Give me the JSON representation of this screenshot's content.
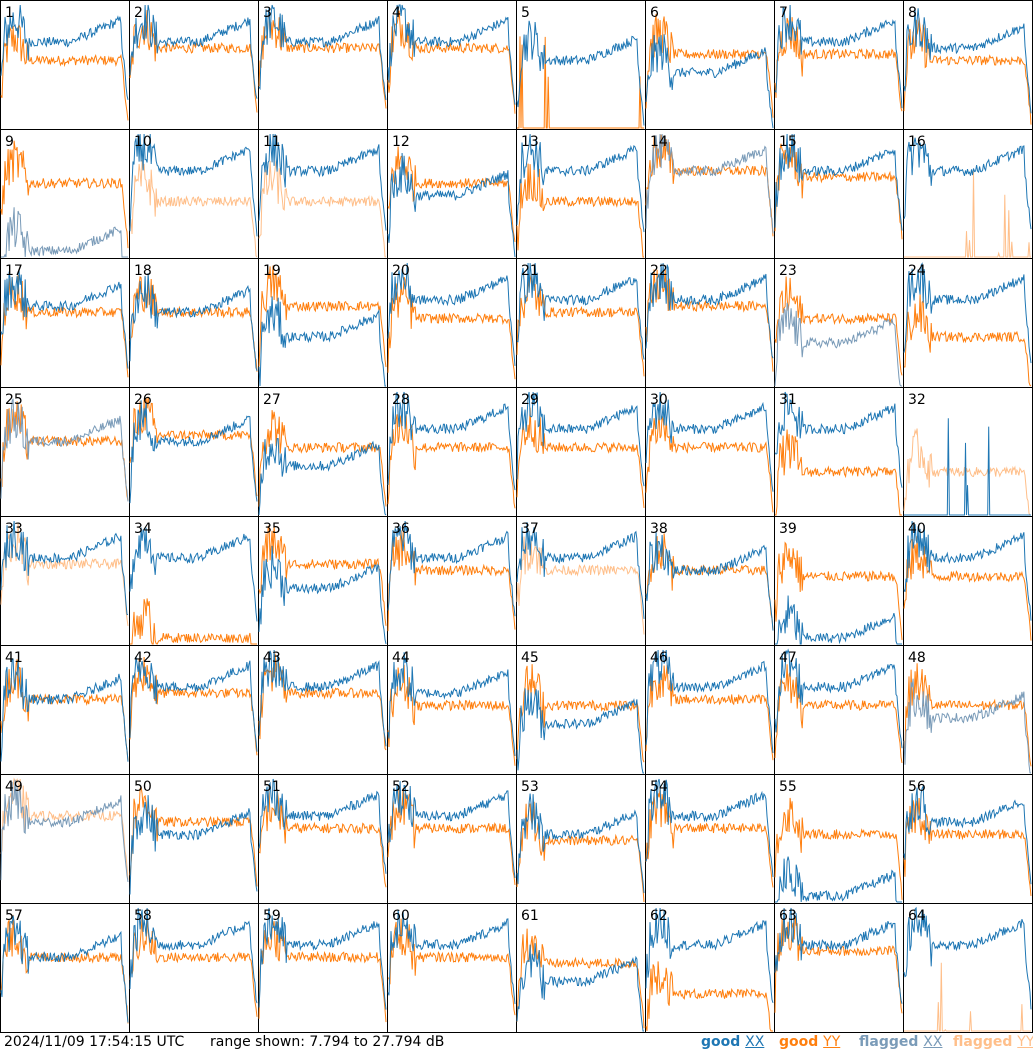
{
  "chart_data": {
    "type": "line",
    "grid": {
      "rows": 8,
      "cols": 8
    },
    "tiles": [
      {
        "label": "1",
        "xx": "good",
        "yy": "good",
        "xx_base": 0.7,
        "yy_base": 0.55
      },
      {
        "label": "2",
        "xx": "good",
        "yy": "good",
        "xx_base": 0.7,
        "yy_base": 0.65
      },
      {
        "label": "3",
        "xx": "good",
        "yy": "good",
        "xx_base": 0.7,
        "yy_base": 0.65
      },
      {
        "label": "4",
        "xx": "good",
        "yy": "good",
        "xx_base": 0.7,
        "yy_base": 0.65
      },
      {
        "label": "5",
        "xx": "good",
        "yy": "good",
        "xx_base": 0.55,
        "yy_base": 0.0
      },
      {
        "label": "6",
        "xx": "good",
        "yy": "good",
        "xx_base": 0.45,
        "yy_base": 0.6
      },
      {
        "label": "7",
        "xx": "good",
        "yy": "good",
        "xx_base": 0.7,
        "yy_base": 0.6
      },
      {
        "label": "8",
        "xx": "good",
        "yy": "good",
        "xx_base": 0.65,
        "yy_base": 0.55
      },
      {
        "label": "9",
        "xx": "flagged",
        "yy": "good",
        "xx_base": 0.05,
        "yy_base": 0.6
      },
      {
        "label": "10",
        "xx": "good",
        "yy": "flagged",
        "xx_base": 0.7,
        "yy_base": 0.45
      },
      {
        "label": "11",
        "xx": "good",
        "yy": "flagged",
        "xx_base": 0.7,
        "yy_base": 0.45
      },
      {
        "label": "12",
        "xx": "good",
        "yy": "good",
        "xx_base": 0.5,
        "yy_base": 0.6
      },
      {
        "label": "13",
        "xx": "good",
        "yy": "good",
        "xx_base": 0.7,
        "yy_base": 0.45
      },
      {
        "label": "14",
        "xx": "flagged",
        "yy": "good",
        "xx_base": 0.7,
        "yy_base": 0.7
      },
      {
        "label": "15",
        "xx": "good",
        "yy": "good",
        "xx_base": 0.7,
        "yy_base": 0.65
      },
      {
        "label": "16",
        "xx": "good",
        "yy": "flagged",
        "xx_base": 0.7,
        "yy_base": 0.0
      },
      {
        "label": "17",
        "xx": "good",
        "yy": "good",
        "xx_base": 0.65,
        "yy_base": 0.6
      },
      {
        "label": "18",
        "xx": "good",
        "yy": "good",
        "xx_base": 0.6,
        "yy_base": 0.6
      },
      {
        "label": "19",
        "xx": "good",
        "yy": "good",
        "xx_base": 0.4,
        "yy_base": 0.65
      },
      {
        "label": "20",
        "xx": "good",
        "yy": "good",
        "xx_base": 0.7,
        "yy_base": 0.55
      },
      {
        "label": "21",
        "xx": "good",
        "yy": "good",
        "xx_base": 0.7,
        "yy_base": 0.6
      },
      {
        "label": "22",
        "xx": "good",
        "yy": "good",
        "xx_base": 0.7,
        "yy_base": 0.65
      },
      {
        "label": "23",
        "xx": "flagged",
        "yy": "good",
        "xx_base": 0.35,
        "yy_base": 0.55
      },
      {
        "label": "24",
        "xx": "good",
        "yy": "good",
        "xx_base": 0.7,
        "yy_base": 0.4
      },
      {
        "label": "25",
        "xx": "flagged",
        "yy": "good",
        "xx_base": 0.6,
        "yy_base": 0.6
      },
      {
        "label": "26",
        "xx": "good",
        "yy": "good",
        "xx_base": 0.6,
        "yy_base": 0.65
      },
      {
        "label": "27",
        "xx": "good",
        "yy": "good",
        "xx_base": 0.4,
        "yy_base": 0.55
      },
      {
        "label": "28",
        "xx": "good",
        "yy": "good",
        "xx_base": 0.7,
        "yy_base": 0.55
      },
      {
        "label": "29",
        "xx": "good",
        "yy": "good",
        "xx_base": 0.7,
        "yy_base": 0.55
      },
      {
        "label": "30",
        "xx": "good",
        "yy": "good",
        "xx_base": 0.7,
        "yy_base": 0.55
      },
      {
        "label": "31",
        "xx": "good",
        "yy": "good",
        "xx_base": 0.7,
        "yy_base": 0.35
      },
      {
        "label": "32",
        "xx": "good",
        "yy": "flagged",
        "xx_base": 0.0,
        "yy_base": 0.35
      },
      {
        "label": "33",
        "xx": "good",
        "yy": "flagged",
        "xx_base": 0.7,
        "yy_base": 0.65
      },
      {
        "label": "34",
        "xx": "good",
        "yy": "good",
        "xx_base": 0.7,
        "yy_base": 0.05
      },
      {
        "label": "35",
        "xx": "good",
        "yy": "good",
        "xx_base": 0.45,
        "yy_base": 0.65
      },
      {
        "label": "36",
        "xx": "good",
        "yy": "good",
        "xx_base": 0.7,
        "yy_base": 0.6
      },
      {
        "label": "37",
        "xx": "good",
        "yy": "flagged",
        "xx_base": 0.7,
        "yy_base": 0.6
      },
      {
        "label": "38",
        "xx": "good",
        "yy": "good",
        "xx_base": 0.6,
        "yy_base": 0.6
      },
      {
        "label": "39",
        "xx": "good",
        "yy": "good",
        "xx_base": 0.05,
        "yy_base": 0.55
      },
      {
        "label": "40",
        "xx": "good",
        "yy": "good",
        "xx_base": 0.7,
        "yy_base": 0.55
      },
      {
        "label": "41",
        "xx": "good",
        "yy": "good",
        "xx_base": 0.6,
        "yy_base": 0.6
      },
      {
        "label": "42",
        "xx": "good",
        "yy": "good",
        "xx_base": 0.7,
        "yy_base": 0.65
      },
      {
        "label": "43",
        "xx": "good",
        "yy": "good",
        "xx_base": 0.7,
        "yy_base": 0.65
      },
      {
        "label": "44",
        "xx": "good",
        "yy": "good",
        "xx_base": 0.65,
        "yy_base": 0.55
      },
      {
        "label": "45",
        "xx": "good",
        "yy": "good",
        "xx_base": 0.4,
        "yy_base": 0.55
      },
      {
        "label": "46",
        "xx": "good",
        "yy": "good",
        "xx_base": 0.7,
        "yy_base": 0.6
      },
      {
        "label": "47",
        "xx": "good",
        "yy": "good",
        "xx_base": 0.7,
        "yy_base": 0.55
      },
      {
        "label": "48",
        "xx": "flagged",
        "yy": "good",
        "xx_base": 0.45,
        "yy_base": 0.55
      },
      {
        "label": "49",
        "xx": "flagged",
        "yy": "flagged",
        "xx_base": 0.65,
        "yy_base": 0.7
      },
      {
        "label": "50",
        "xx": "good",
        "yy": "good",
        "xx_base": 0.55,
        "yy_base": 0.65
      },
      {
        "label": "51",
        "xx": "good",
        "yy": "good",
        "xx_base": 0.7,
        "yy_base": 0.6
      },
      {
        "label": "52",
        "xx": "good",
        "yy": "good",
        "xx_base": 0.7,
        "yy_base": 0.6
      },
      {
        "label": "53",
        "xx": "good",
        "yy": "good",
        "xx_base": 0.55,
        "yy_base": 0.5
      },
      {
        "label": "54",
        "xx": "good",
        "yy": "good",
        "xx_base": 0.7,
        "yy_base": 0.6
      },
      {
        "label": "55",
        "xx": "good",
        "yy": "good",
        "xx_base": 0.05,
        "yy_base": 0.55
      },
      {
        "label": "56",
        "xx": "good",
        "yy": "good",
        "xx_base": 0.65,
        "yy_base": 0.55
      },
      {
        "label": "57",
        "xx": "good",
        "yy": "good",
        "xx_base": 0.6,
        "yy_base": 0.6
      },
      {
        "label": "58",
        "xx": "good",
        "yy": "good",
        "xx_base": 0.7,
        "yy_base": 0.6
      },
      {
        "label": "59",
        "xx": "good",
        "yy": "good",
        "xx_base": 0.7,
        "yy_base": 0.6
      },
      {
        "label": "60",
        "xx": "good",
        "yy": "good",
        "xx_base": 0.7,
        "yy_base": 0.6
      },
      {
        "label": "61",
        "xx": "good",
        "yy": "good",
        "xx_base": 0.4,
        "yy_base": 0.55
      },
      {
        "label": "62",
        "xx": "good",
        "yy": "good",
        "xx_base": 0.7,
        "yy_base": 0.3
      },
      {
        "label": "63",
        "xx": "good",
        "yy": "good",
        "xx_base": 0.7,
        "yy_base": 0.65
      },
      {
        "label": "64",
        "xx": "good",
        "yy": "flagged",
        "xx_base": 0.7,
        "yy_base": 0.0
      }
    ]
  },
  "footer": {
    "timestamp": "2024/11/09 17:54:15 UTC",
    "range_text": "range shown: 7.794 to 27.794 dB"
  },
  "legend": [
    {
      "prefix": "good",
      "pol": "XX",
      "color": "#1f77b4"
    },
    {
      "prefix": "good",
      "pol": "YY",
      "color": "#ff7f0e"
    },
    {
      "prefix": "flagged",
      "pol": "XX",
      "color": "#7a9bb8"
    },
    {
      "prefix": "flagged",
      "pol": "YY",
      "color": "#ffbf8a"
    }
  ],
  "colors": {
    "good_xx": "#1f77b4",
    "good_yy": "#ff7f0e",
    "flagged_xx": "#7a9bb8",
    "flagged_yy": "#ffbf8a"
  }
}
